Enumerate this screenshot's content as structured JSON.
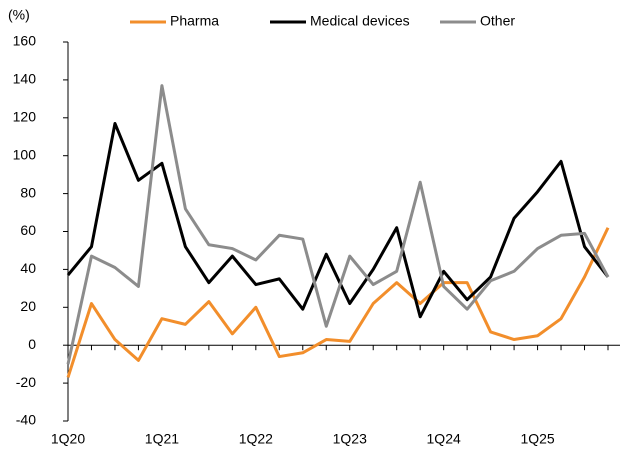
{
  "chart_data": {
    "type": "line",
    "ylabel": "(%)",
    "categories": [
      "1Q20",
      null,
      null,
      null,
      "1Q21",
      null,
      null,
      null,
      "1Q22",
      null,
      null,
      null,
      "1Q23",
      null,
      null,
      null,
      "1Q24",
      null,
      null,
      null,
      "1Q25",
      null,
      null,
      null
    ],
    "series": [
      {
        "name": "Pharma",
        "color": "#f28e2b",
        "values": [
          -17,
          22,
          3,
          -8,
          14,
          11,
          23,
          6,
          20,
          -6,
          -4,
          3,
          2,
          22,
          33,
          22,
          33,
          33,
          7,
          3,
          5,
          14,
          36,
          62
        ]
      },
      {
        "name": "Medical devices",
        "color": "#000000",
        "values": [
          37,
          52,
          117,
          87,
          96,
          52,
          33,
          47,
          32,
          35,
          19,
          48,
          22,
          40,
          62,
          15,
          39,
          24,
          36,
          67,
          81,
          97,
          52,
          36
        ]
      },
      {
        "name": "Other",
        "color": "#8c8c8c",
        "values": [
          -10,
          47,
          41,
          31,
          137,
          72,
          53,
          51,
          45,
          58,
          56,
          10,
          47,
          32,
          39,
          86,
          31,
          19,
          34,
          39,
          51,
          58,
          59,
          36
        ]
      }
    ],
    "ylim": [
      -40,
      160
    ],
    "yticks": [
      -40,
      -20,
      0,
      20,
      40,
      60,
      80,
      100,
      120,
      140,
      160
    ],
    "legend": "top",
    "grid": false
  }
}
